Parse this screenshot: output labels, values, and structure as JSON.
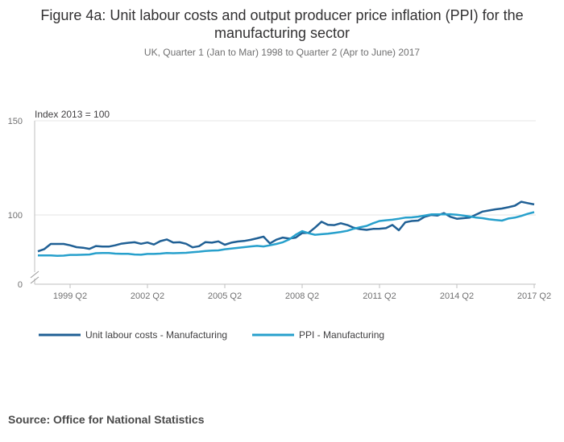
{
  "chart_data": {
    "type": "line",
    "title": "Figure 4a: Unit labour costs and output producer price inflation (PPI) for the manufacturing sector",
    "subtitle": "UK, Quarter 1 (Jan to Mar) 1998 to Quarter 2 (Apr to June) 2017",
    "ylabel": "Index 2013 = 100",
    "y_ticks": [
      "150",
      "100",
      "0"
    ],
    "ylim": [
      70,
      150
    ],
    "x_tick_labels": [
      "1999 Q2",
      "2002 Q2",
      "2005 Q2",
      "2008 Q2",
      "2011 Q2",
      "2014 Q2",
      "2017 Q2"
    ],
    "x_tick_index": [
      5,
      17,
      29,
      41,
      53,
      65,
      77
    ],
    "x_count": 78,
    "legend_position": "bottom-left",
    "series": [
      {
        "name": "Unit labour costs - Manufacturing",
        "color": "#206095",
        "values": [
          80.7,
          81.9,
          84.6,
          84.6,
          84.6,
          83.9,
          82.9,
          82.6,
          82.0,
          83.5,
          83.2,
          83.2,
          83.9,
          84.8,
          85.2,
          85.5,
          84.7,
          85.4,
          84.3,
          86.1,
          87.0,
          85.4,
          85.5,
          84.7,
          82.8,
          83.4,
          85.6,
          85.3,
          86.0,
          84.2,
          85.3,
          85.9,
          86.2,
          86.8,
          87.6,
          88.5,
          84.9,
          86.9,
          88.0,
          87.5,
          88.0,
          90.4,
          90.5,
          93.3,
          96.4,
          94.8,
          94.6,
          95.6,
          94.7,
          93.2,
          92.5,
          92.1,
          92.6,
          92.7,
          93.0,
          94.7,
          91.9,
          96.1,
          96.8,
          97.0,
          99.0,
          100.0,
          99.7,
          101.0,
          99.0,
          98.0,
          98.3,
          98.6,
          100.2,
          101.8,
          102.4,
          103.0,
          103.4,
          104.1,
          104.9,
          107.0,
          106.3,
          105.6
        ]
      },
      {
        "name": "PPI - Manufacturing",
        "color": "#27a0cc",
        "values": [
          78.5,
          78.5,
          78.5,
          78.3,
          78.4,
          78.8,
          78.8,
          78.9,
          79.0,
          79.7,
          79.8,
          79.8,
          79.5,
          79.4,
          79.4,
          79.0,
          78.9,
          79.3,
          79.3,
          79.5,
          79.8,
          79.7,
          79.8,
          79.9,
          80.2,
          80.5,
          80.9,
          81.1,
          81.2,
          81.8,
          82.2,
          82.5,
          82.9,
          83.3,
          83.6,
          83.3,
          83.9,
          84.6,
          85.5,
          87.0,
          89.5,
          91.4,
          90.3,
          89.5,
          89.8,
          90.1,
          90.5,
          91.0,
          91.6,
          92.7,
          93.5,
          94.2,
          95.6,
          96.8,
          97.2,
          97.5,
          98.0,
          98.6,
          98.7,
          99.1,
          99.7,
          100.3,
          100.3,
          100.3,
          100.4,
          100.1,
          99.7,
          99.2,
          98.6,
          98.3,
          97.7,
          97.3,
          97.0,
          98.1,
          98.6,
          99.5,
          100.6,
          101.5
        ]
      }
    ]
  },
  "source": "Source: Office for National Statistics"
}
